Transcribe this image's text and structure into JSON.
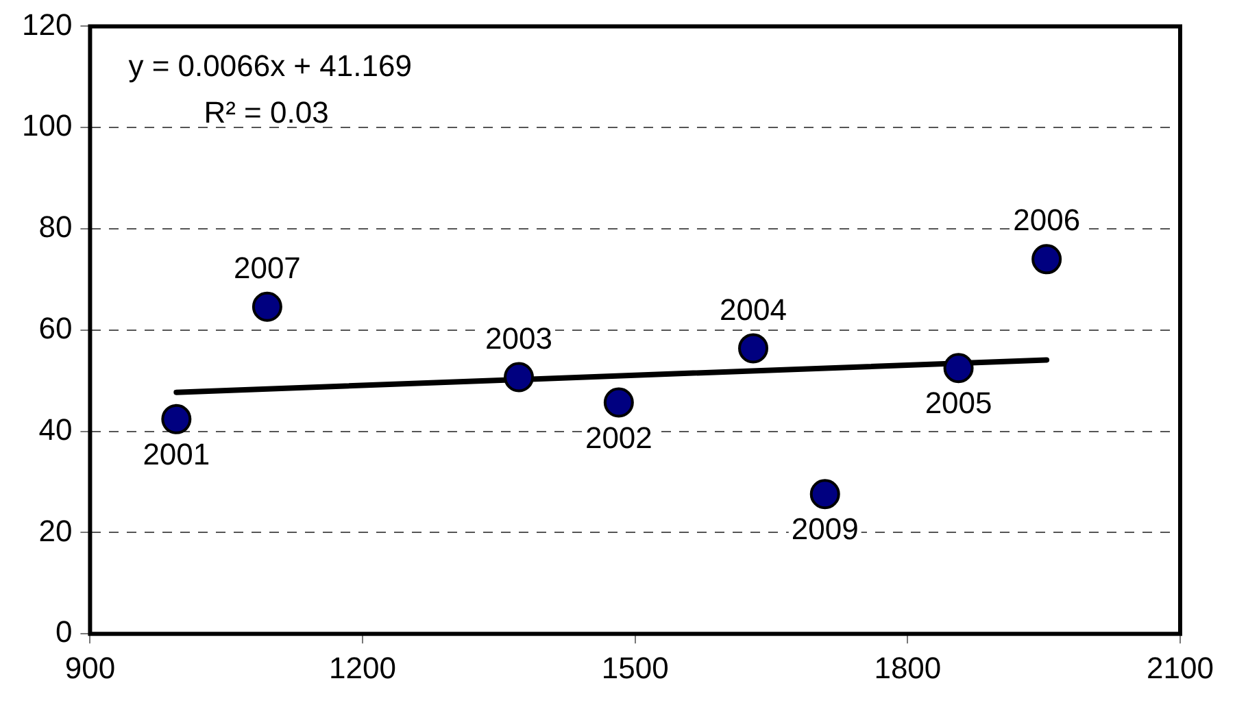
{
  "chart_data": {
    "type": "scatter",
    "x": [
      995,
      1095,
      1372,
      1482,
      1630,
      1709,
      1856,
      1953
    ],
    "series": [
      {
        "color": "#000080",
        "marker": "circle",
        "values": [
          42.4,
          64.6,
          50.7,
          45.7,
          56.4,
          27.6,
          52.5,
          74.0
        ]
      },
      {
        "type": "line",
        "color": "#000000",
        "x": [
          995,
          1953
        ],
        "values": [
          47.7,
          54.1
        ]
      }
    ],
    "annotations": [
      "y = 0.0066x + 41.169",
      "R² = 0.03",
      {
        "text": "2001",
        "x": 995,
        "y": 42.4
      },
      {
        "text": "2007",
        "x": 1095,
        "y": 64.6
      },
      {
        "text": "2003",
        "x": 1372,
        "y": 50.7
      },
      {
        "text": "2002",
        "x": 1482,
        "y": 45.7
      },
      {
        "text": "2004",
        "x": 1630,
        "y": 56.4
      },
      {
        "text": "2009",
        "x": 1709,
        "y": 27.6
      },
      {
        "text": "2005",
        "x": 1856,
        "y": 52.5
      },
      {
        "text": "2006",
        "x": 1953,
        "y": 74.0
      }
    ],
    "xlim": [
      900,
      2100
    ],
    "xticks": [
      900,
      1200,
      1500,
      1800,
      2100
    ],
    "ylim": [
      0,
      120
    ],
    "yticks": [
      0,
      20,
      40,
      60,
      80,
      100,
      120
    ],
    "grid": "y",
    "legend": false
  }
}
